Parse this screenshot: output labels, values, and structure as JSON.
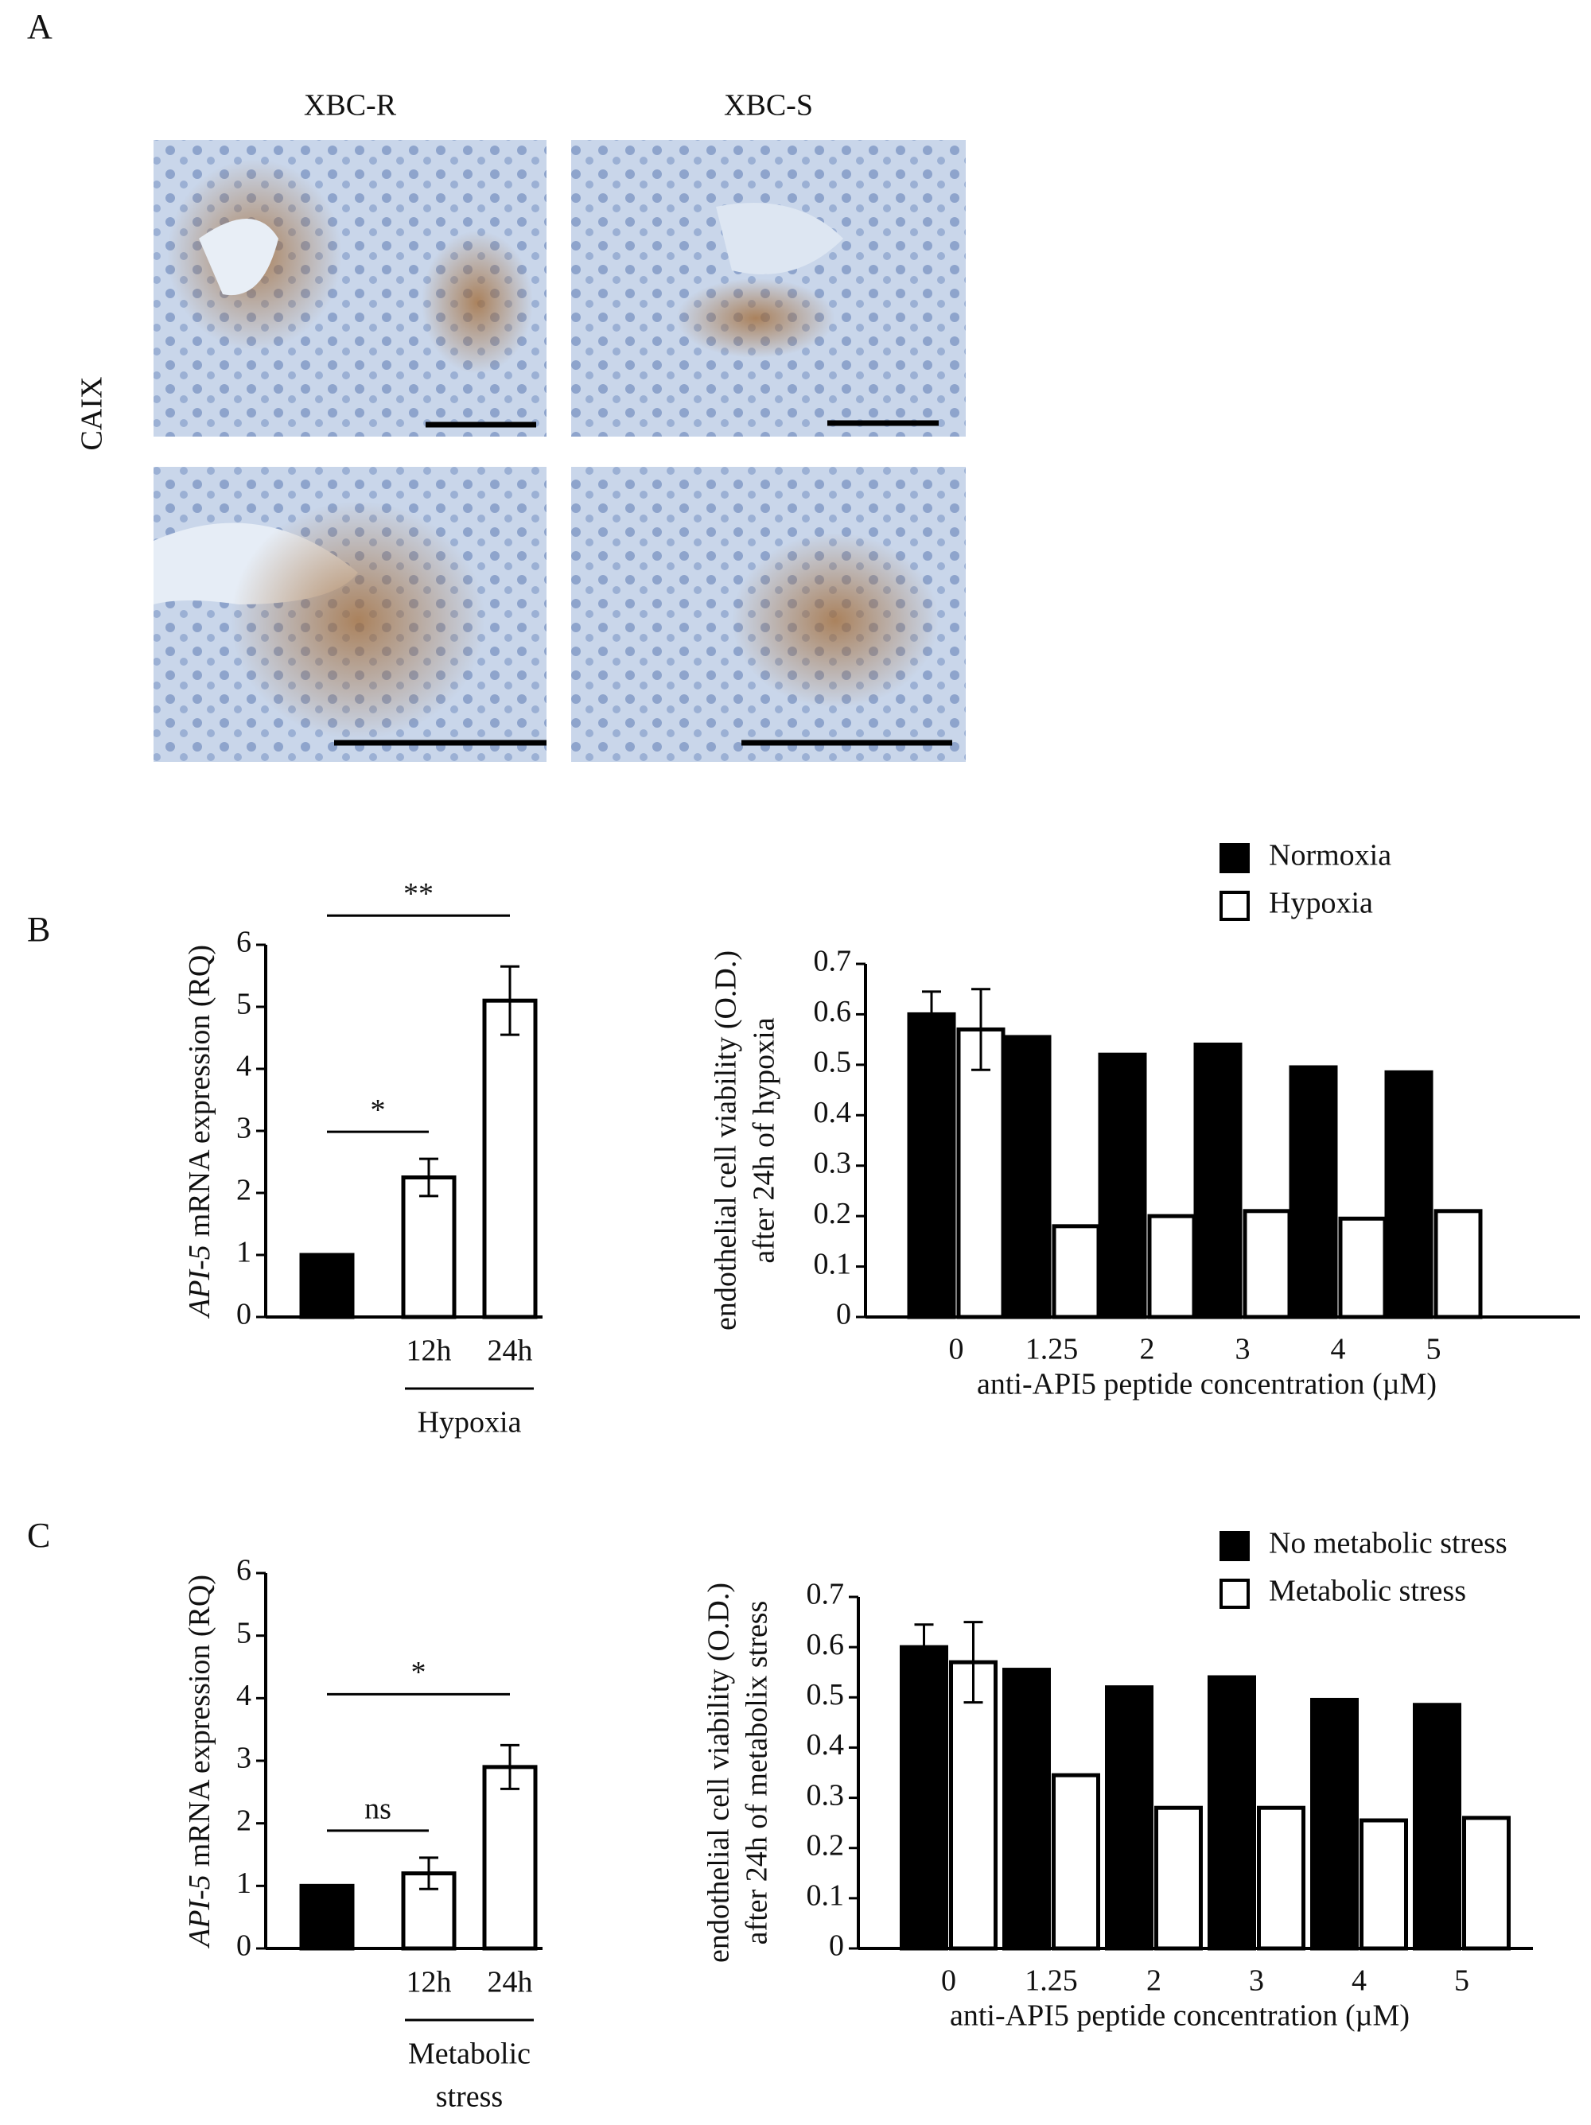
{
  "figure": {
    "panels": [
      "A",
      "B",
      "C"
    ],
    "columns": [
      "XBC-R",
      "XBC-S"
    ],
    "row_label": "CAIX"
  },
  "chart_data": [
    {
      "type": "bar",
      "ylabel_italic": "API-5",
      "ylabel": "mRNA expression (RQ)",
      "categories": [
        null,
        "12h",
        "24h"
      ],
      "values": [
        1,
        2.25,
        5.1
      ],
      "errors": [
        null,
        0.3,
        0.55
      ],
      "colors": [
        "#000000",
        "#ffffff",
        "#ffffff"
      ],
      "ylim": [
        0,
        6
      ],
      "yticks": [
        0,
        1,
        2,
        3,
        4,
        5,
        6
      ],
      "group_label": [
        "Hypoxia"
      ],
      "annotations": [
        {
          "text": "*",
          "from": 0,
          "to": 1
        },
        {
          "text": "**",
          "from": 0,
          "to": 2
        }
      ]
    },
    {
      "type": "bar",
      "ylabel": [
        "endothelial cell viability (O.D.)",
        "after 24h of hypoxia"
      ],
      "xlabel": "anti-API5 peptide concentration (µM)",
      "categories": [
        "0",
        "1.25",
        "2",
        "3",
        "4",
        "5"
      ],
      "series": [
        {
          "name": "Normoxia",
          "color": "#000000",
          "values": [
            0.6,
            0.555,
            0.52,
            0.54,
            0.495,
            0.485
          ],
          "errors": [
            0.045,
            null,
            null,
            null,
            null,
            null
          ]
        },
        {
          "name": "Hypoxia",
          "color": "#ffffff",
          "values": [
            0.57,
            0.18,
            0.2,
            0.21,
            0.195,
            0.21
          ],
          "errors": [
            0.08,
            null,
            null,
            null,
            null,
            null
          ]
        }
      ],
      "ylim": [
        0,
        0.7
      ],
      "yticks": [
        0,
        0.1,
        0.2,
        0.3,
        0.4,
        0.5,
        0.6,
        0.7
      ],
      "legend": "top-right"
    },
    {
      "type": "bar",
      "ylabel_italic": "API-5",
      "ylabel": "mRNA expression (RQ)",
      "categories": [
        null,
        "12h",
        "24h"
      ],
      "values": [
        1,
        1.2,
        2.9
      ],
      "errors": [
        null,
        0.25,
        0.35
      ],
      "colors": [
        "#000000",
        "#ffffff",
        "#ffffff"
      ],
      "ylim": [
        0,
        6
      ],
      "yticks": [
        0,
        1,
        2,
        3,
        4,
        5,
        6
      ],
      "group_label": [
        "Metabolic",
        "stress"
      ],
      "annotations": [
        {
          "text": "ns",
          "from": 0,
          "to": 1
        },
        {
          "text": "*",
          "from": 0,
          "to": 2
        }
      ]
    },
    {
      "type": "bar",
      "ylabel": [
        "endothelial cell viability (O.D.)",
        "after 24h of metabolix stress"
      ],
      "xlabel": "anti-API5 peptide concentration (µM)",
      "categories": [
        "0",
        "1.25",
        "2",
        "3",
        "4",
        "5"
      ],
      "series": [
        {
          "name": "No metabolic stress",
          "color": "#000000",
          "values": [
            0.6,
            0.555,
            0.52,
            0.54,
            0.495,
            0.485
          ],
          "errors": [
            0.045,
            null,
            null,
            null,
            null,
            null
          ]
        },
        {
          "name": "Metabolic stress",
          "color": "#ffffff",
          "values": [
            0.57,
            0.345,
            0.28,
            0.28,
            0.255,
            0.26
          ],
          "errors": [
            0.08,
            null,
            null,
            null,
            null,
            null
          ]
        }
      ],
      "ylim": [
        0,
        0.7
      ],
      "yticks": [
        0,
        0.1,
        0.2,
        0.3,
        0.4,
        0.5,
        0.6,
        0.7
      ],
      "legend": "top-right"
    }
  ]
}
